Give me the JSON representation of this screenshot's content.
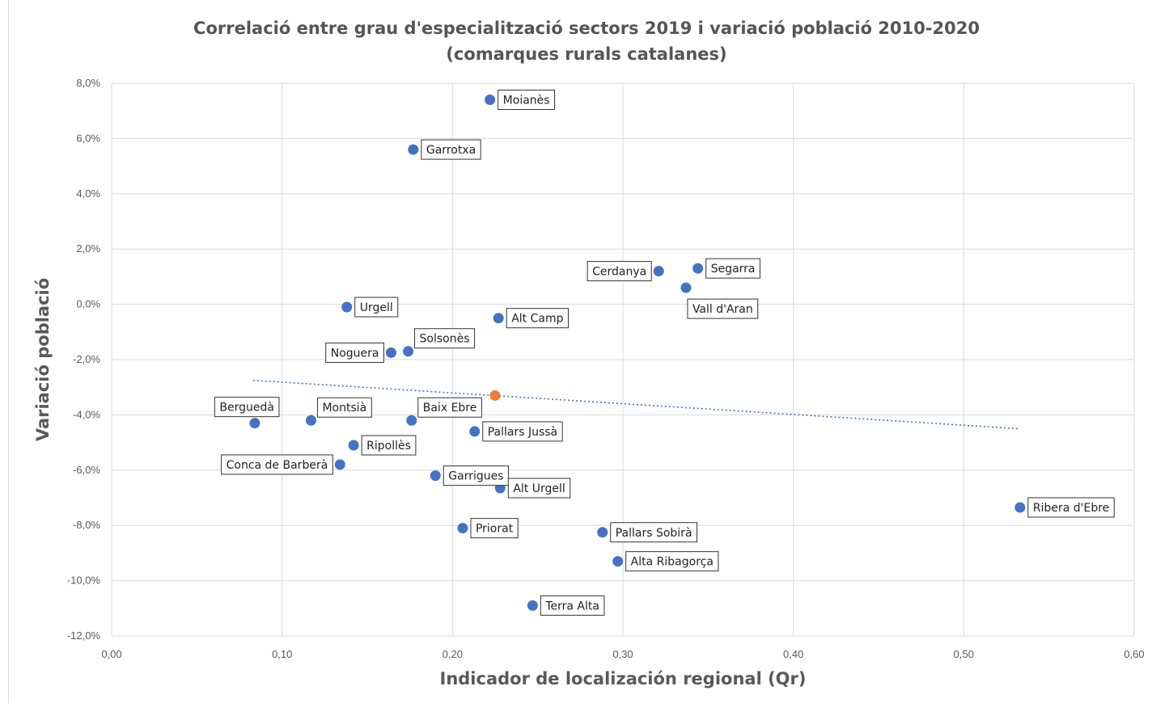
{
  "chart_data": {
    "type": "scatter",
    "title": "Correlació entre grau d'especialització sectors 2019 i variació població 2010-2020",
    "subtitle": "(comarques rurals catalanes)",
    "xlabel": "Indicador de localización regional (Qr)",
    "ylabel": "Variació població",
    "xlim": [
      0,
      0.6
    ],
    "ylim": [
      -12,
      8
    ],
    "x_ticks": [
      "0,00",
      "0,10",
      "0,20",
      "0,30",
      "0,40",
      "0,50",
      "0,60"
    ],
    "y_ticks": [
      "8,0%",
      "6,0%",
      "4,0%",
      "2,0%",
      "0,0%",
      "-2,0%",
      "-4,0%",
      "-6,0%",
      "-8,0%",
      "-10,0%",
      "-12,0%"
    ],
    "grid": true,
    "point_color": "#4472c4",
    "highlight_color": "#ed7d31",
    "trendline_color": "#4472c4",
    "points": [
      {
        "label": "Moianès",
        "x": 0.222,
        "y": 7.4,
        "label_side": "right"
      },
      {
        "label": "Garrotxa",
        "x": 0.177,
        "y": 5.6,
        "label_side": "right"
      },
      {
        "label": "Segarra",
        "x": 0.344,
        "y": 1.3,
        "label_side": "right"
      },
      {
        "label": "Cerdanya",
        "x": 0.321,
        "y": 1.2,
        "label_side": "left"
      },
      {
        "label": "Vall d'Aran",
        "x": 0.337,
        "y": 0.6,
        "label_side": "below-right"
      },
      {
        "label": "Urgell",
        "x": 0.138,
        "y": -0.1,
        "label_side": "right"
      },
      {
        "label": "Alt Camp",
        "x": 0.227,
        "y": -0.5,
        "label_side": "right"
      },
      {
        "label": "Solsonès",
        "x": 0.174,
        "y": -1.7,
        "label_side": "above-right"
      },
      {
        "label": "Noguera",
        "x": 0.164,
        "y": -1.75,
        "label_side": "left"
      },
      {
        "label": "Berguedà",
        "x": 0.084,
        "y": -4.3,
        "label_side": "above-left"
      },
      {
        "label": "Montsià",
        "x": 0.117,
        "y": -4.2,
        "label_side": "above-right"
      },
      {
        "label": "Baix Ebre",
        "x": 0.176,
        "y": -4.2,
        "label_side": "above-right"
      },
      {
        "label": "Pallars Jussà",
        "x": 0.213,
        "y": -4.6,
        "label_side": "right"
      },
      {
        "label": "Ripollès",
        "x": 0.142,
        "y": -5.1,
        "label_side": "right"
      },
      {
        "label": "Conca de Barberà",
        "x": 0.134,
        "y": -5.8,
        "label_side": "left"
      },
      {
        "label": "Garrigues",
        "x": 0.19,
        "y": -6.2,
        "label_side": "right"
      },
      {
        "label": "Alt Urgell",
        "x": 0.228,
        "y": -6.65,
        "label_side": "right"
      },
      {
        "label": "Ribera d'Ebre",
        "x": 0.533,
        "y": -7.35,
        "label_side": "right"
      },
      {
        "label": "Priorat",
        "x": 0.206,
        "y": -8.1,
        "label_side": "right"
      },
      {
        "label": "Pallars Sobirà",
        "x": 0.288,
        "y": -8.25,
        "label_side": "right"
      },
      {
        "label": "Alta Ribagorça",
        "x": 0.297,
        "y": -9.3,
        "label_side": "right"
      },
      {
        "label": "Terra Alta",
        "x": 0.247,
        "y": -10.9,
        "label_side": "right"
      }
    ],
    "highlight_point": {
      "x": 0.225,
      "y": -3.3
    },
    "trendline": {
      "x": [
        0.083,
        0.532
      ],
      "y": [
        -2.75,
        -4.5
      ],
      "style": "dotted"
    }
  }
}
